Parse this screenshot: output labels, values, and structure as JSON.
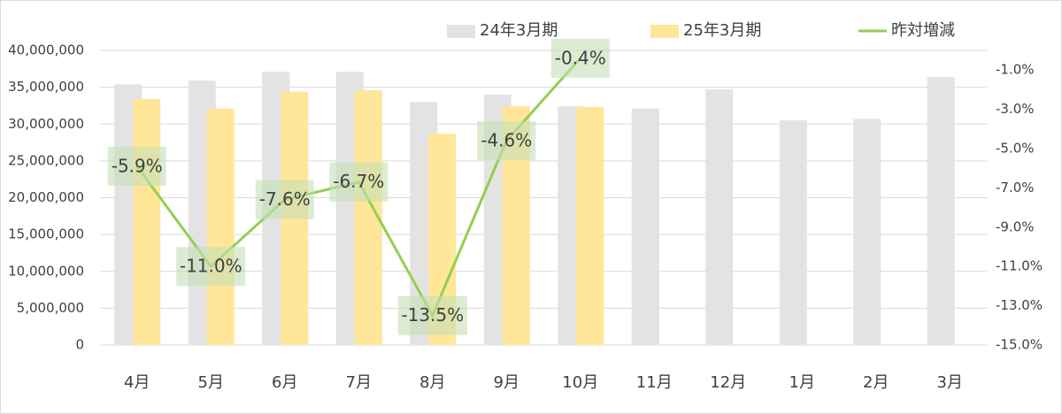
{
  "chart_data": {
    "type": "bar",
    "categories": [
      "4月",
      "5月",
      "6月",
      "7月",
      "8月",
      "9月",
      "10月",
      "11月",
      "12月",
      "1月",
      "2月",
      "3月"
    ],
    "series": [
      {
        "name": "24年3月期",
        "color": "#e4e3e3",
        "values": [
          35400000,
          35900000,
          37100000,
          37100000,
          33000000,
          34000000,
          32400000,
          32100000,
          34700000,
          30500000,
          30700000,
          36400000
        ]
      },
      {
        "name": "25年3月期",
        "color": "#ffe699",
        "values": [
          33400000,
          32100000,
          34400000,
          34600000,
          28700000,
          32400000,
          32300000,
          null,
          null,
          null,
          null,
          null
        ]
      },
      {
        "name": "昨対増減",
        "type": "line",
        "axis": "y2",
        "color": "#92d050",
        "values": [
          -5.9,
          -11.0,
          -7.6,
          -6.7,
          -13.5,
          -4.6,
          -0.4,
          null,
          null,
          null,
          null,
          null
        ],
        "value_labels": [
          "-5.9%",
          "-11.0%",
          "-7.6%",
          "-6.7%",
          "-13.5%",
          "-4.6%",
          "-0.4%",
          null,
          null,
          null,
          null,
          null
        ]
      }
    ],
    "ylim": [
      0,
      40000000
    ],
    "yticks": [
      0,
      {
        "value": 5000000,
        "label": "5,000,000"
      },
      {
        "value": 10000000,
        "label": "10,000,000"
      },
      {
        "value": 15000000,
        "label": "15,000,000"
      },
      {
        "value": 20000000,
        "label": "20,000,000"
      },
      {
        "value": 25000000,
        "label": "25,000,000"
      },
      {
        "value": 30000000,
        "label": "30,000,000"
      },
      {
        "value": 35000000,
        "label": "35,000,000"
      },
      {
        "value": 40000000,
        "label": "40,000,000"
      }
    ],
    "y2lim": [
      -15,
      0
    ],
    "y2ticks": [
      {
        "value": -15,
        "label": "-15.0%"
      },
      {
        "value": -13,
        "label": "-13.0%"
      },
      {
        "value": -11,
        "label": "-11.0%"
      },
      {
        "value": -9,
        "label": "-9.0%"
      },
      {
        "value": -7,
        "label": "-7.0%"
      },
      {
        "value": -5,
        "label": "-5.0%"
      },
      {
        "value": -3,
        "label": "-3.0%"
      },
      {
        "value": -1,
        "label": "-1.0%"
      }
    ],
    "grid": true,
    "legend": "top"
  }
}
